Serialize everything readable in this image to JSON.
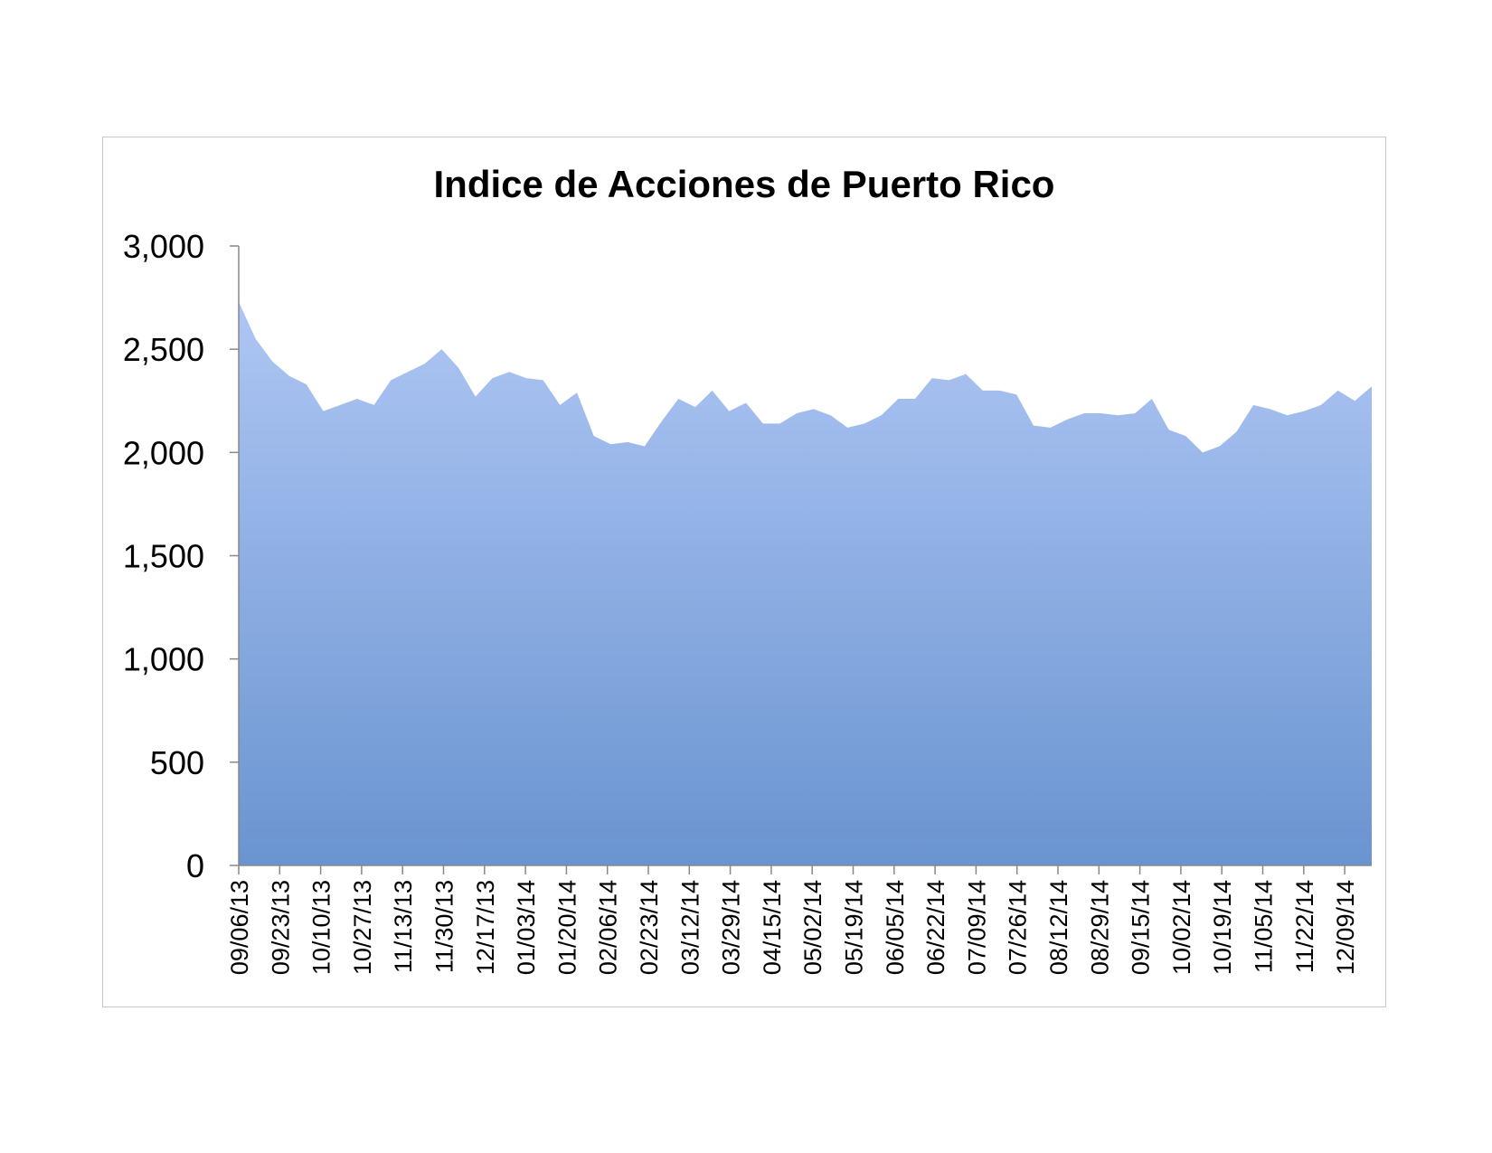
{
  "chart_data": {
    "type": "area",
    "title": "Indice de Acciones de Puerto Rico",
    "xlabel": "",
    "ylabel": "",
    "ylim": [
      0,
      3000
    ],
    "yticks": [
      "0",
      "500",
      "1,000",
      "1,500",
      "2,000",
      "2,500",
      "3,000"
    ],
    "ytick_values": [
      0,
      500,
      1000,
      1500,
      2000,
      2500,
      3000
    ],
    "x_tick_labels": [
      "09/06/13",
      "09/23/13",
      "10/10/13",
      "10/27/13",
      "11/13/13",
      "11/30/13",
      "12/17/13",
      "01/03/14",
      "01/20/14",
      "02/06/14",
      "02/23/14",
      "03/12/14",
      "03/29/14",
      "04/15/14",
      "05/02/14",
      "05/19/14",
      "06/05/14",
      "06/22/14",
      "07/09/14",
      "07/26/14",
      "08/12/14",
      "08/29/14",
      "09/15/14",
      "10/02/14",
      "10/19/14",
      "11/05/14",
      "11/22/14",
      "12/09/14"
    ],
    "grid": false,
    "legend": "none",
    "fill_top_color": "#aec6f4",
    "fill_bottom_color": "#6a94d0",
    "values": [
      2730,
      2550,
      2440,
      2370,
      2330,
      2200,
      2230,
      2260,
      2230,
      2350,
      2390,
      2430,
      2500,
      2410,
      2270,
      2360,
      2390,
      2360,
      2350,
      2230,
      2290,
      2080,
      2040,
      2050,
      2030,
      2150,
      2260,
      2220,
      2300,
      2200,
      2240,
      2140,
      2140,
      2190,
      2210,
      2180,
      2120,
      2140,
      2180,
      2260,
      2260,
      2360,
      2350,
      2380,
      2300,
      2300,
      2280,
      2130,
      2120,
      2160,
      2190,
      2190,
      2180,
      2190,
      2260,
      2110,
      2080,
      2000,
      2030,
      2100,
      2230,
      2210,
      2180,
      2200,
      2230,
      2300,
      2250,
      2320
    ]
  }
}
